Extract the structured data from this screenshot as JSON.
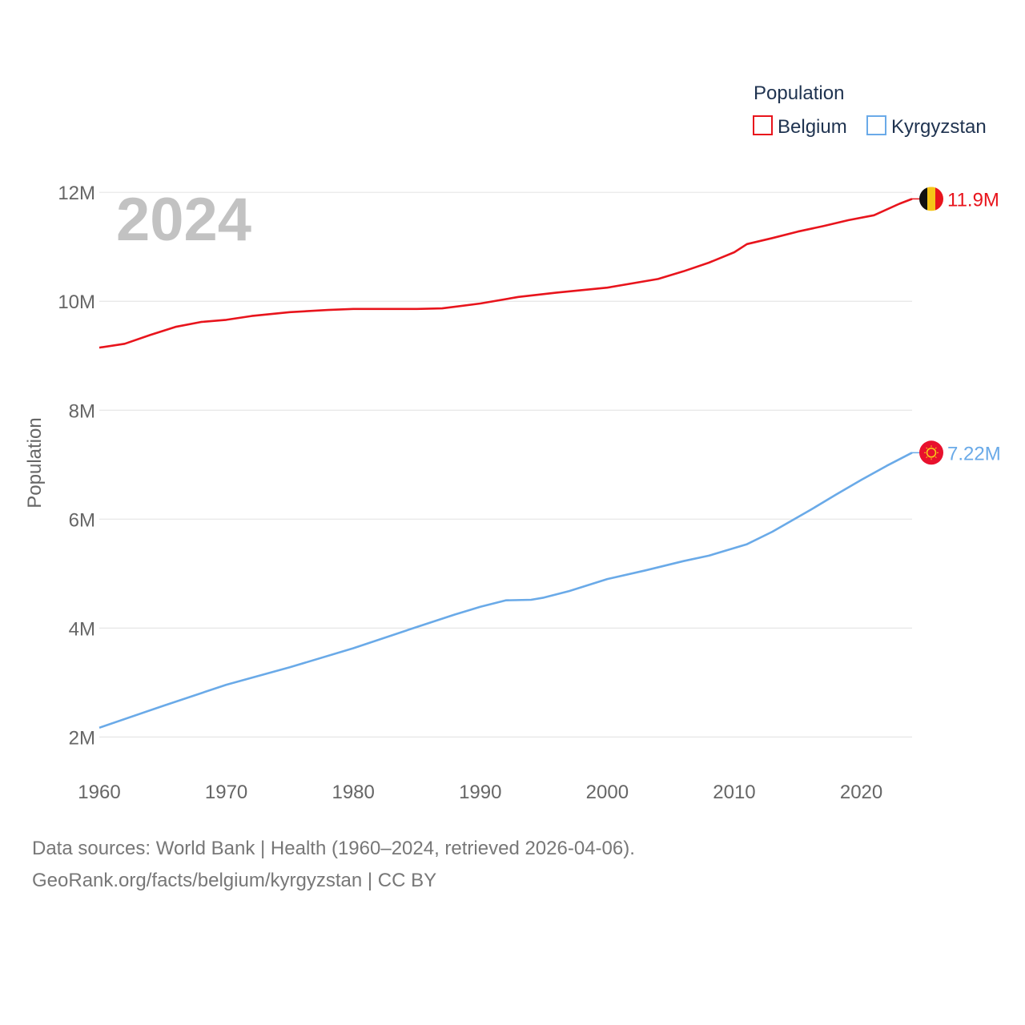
{
  "chart_data": {
    "type": "line",
    "ylabel": "Population",
    "xlabel": "",
    "x_range": [
      1960,
      2024
    ],
    "ylim": [
      1800000,
      12400000
    ],
    "y_ticks": [
      {
        "value": 2000000,
        "label": "2M"
      },
      {
        "value": 4000000,
        "label": "4M"
      },
      {
        "value": 6000000,
        "label": "6M"
      },
      {
        "value": 8000000,
        "label": "8M"
      },
      {
        "value": 10000000,
        "label": "10M"
      },
      {
        "value": 12000000,
        "label": "12M"
      }
    ],
    "x_ticks": [
      {
        "value": 1960,
        "label": "1960"
      },
      {
        "value": 1970,
        "label": "1970"
      },
      {
        "value": 1980,
        "label": "1980"
      },
      {
        "value": 1990,
        "label": "1990"
      },
      {
        "value": 2000,
        "label": "2000"
      },
      {
        "value": 2010,
        "label": "2010"
      },
      {
        "value": 2020,
        "label": "2020"
      }
    ],
    "grid": true,
    "year_overlay": "2024",
    "legend": {
      "title": "Population",
      "placement": "top-right"
    },
    "series": [
      {
        "name": "Belgium",
        "color": "#e8141c",
        "end_label": "11.9M",
        "flag_icon": "belgium-flag-icon",
        "points": [
          [
            1960,
            9150000
          ],
          [
            1962,
            9220000
          ],
          [
            1964,
            9380000
          ],
          [
            1966,
            9530000
          ],
          [
            1968,
            9620000
          ],
          [
            1970,
            9660000
          ],
          [
            1972,
            9730000
          ],
          [
            1975,
            9800000
          ],
          [
            1978,
            9840000
          ],
          [
            1980,
            9860000
          ],
          [
            1985,
            9860000
          ],
          [
            1987,
            9870000
          ],
          [
            1990,
            9960000
          ],
          [
            1993,
            10080000
          ],
          [
            1996,
            10160000
          ],
          [
            2000,
            10250000
          ],
          [
            2004,
            10410000
          ],
          [
            2006,
            10550000
          ],
          [
            2008,
            10710000
          ],
          [
            2010,
            10900000
          ],
          [
            2011,
            11050000
          ],
          [
            2013,
            11160000
          ],
          [
            2015,
            11280000
          ],
          [
            2017,
            11380000
          ],
          [
            2019,
            11490000
          ],
          [
            2021,
            11580000
          ],
          [
            2023,
            11790000
          ],
          [
            2024,
            11880000
          ]
        ]
      },
      {
        "name": "Kyrgyzstan",
        "color": "#6aaae8",
        "end_label": "7.22M",
        "flag_icon": "kyrgyzstan-flag-icon",
        "points": [
          [
            1960,
            2170000
          ],
          [
            1965,
            2570000
          ],
          [
            1970,
            2960000
          ],
          [
            1975,
            3280000
          ],
          [
            1980,
            3630000
          ],
          [
            1985,
            4020000
          ],
          [
            1988,
            4250000
          ],
          [
            1990,
            4390000
          ],
          [
            1992,
            4510000
          ],
          [
            1994,
            4520000
          ],
          [
            1995,
            4560000
          ],
          [
            1997,
            4680000
          ],
          [
            2000,
            4900000
          ],
          [
            2003,
            5060000
          ],
          [
            2006,
            5230000
          ],
          [
            2008,
            5330000
          ],
          [
            2011,
            5540000
          ],
          [
            2013,
            5770000
          ],
          [
            2016,
            6170000
          ],
          [
            2018,
            6450000
          ],
          [
            2020,
            6720000
          ],
          [
            2022,
            6980000
          ],
          [
            2024,
            7220000
          ]
        ]
      }
    ]
  },
  "footer": {
    "line1": "Data sources: World Bank | Health (1960–2024, retrieved 2026-04-06).",
    "line2": "GeoRank.org/facts/belgium/kyrgyzstan | CC BY"
  }
}
